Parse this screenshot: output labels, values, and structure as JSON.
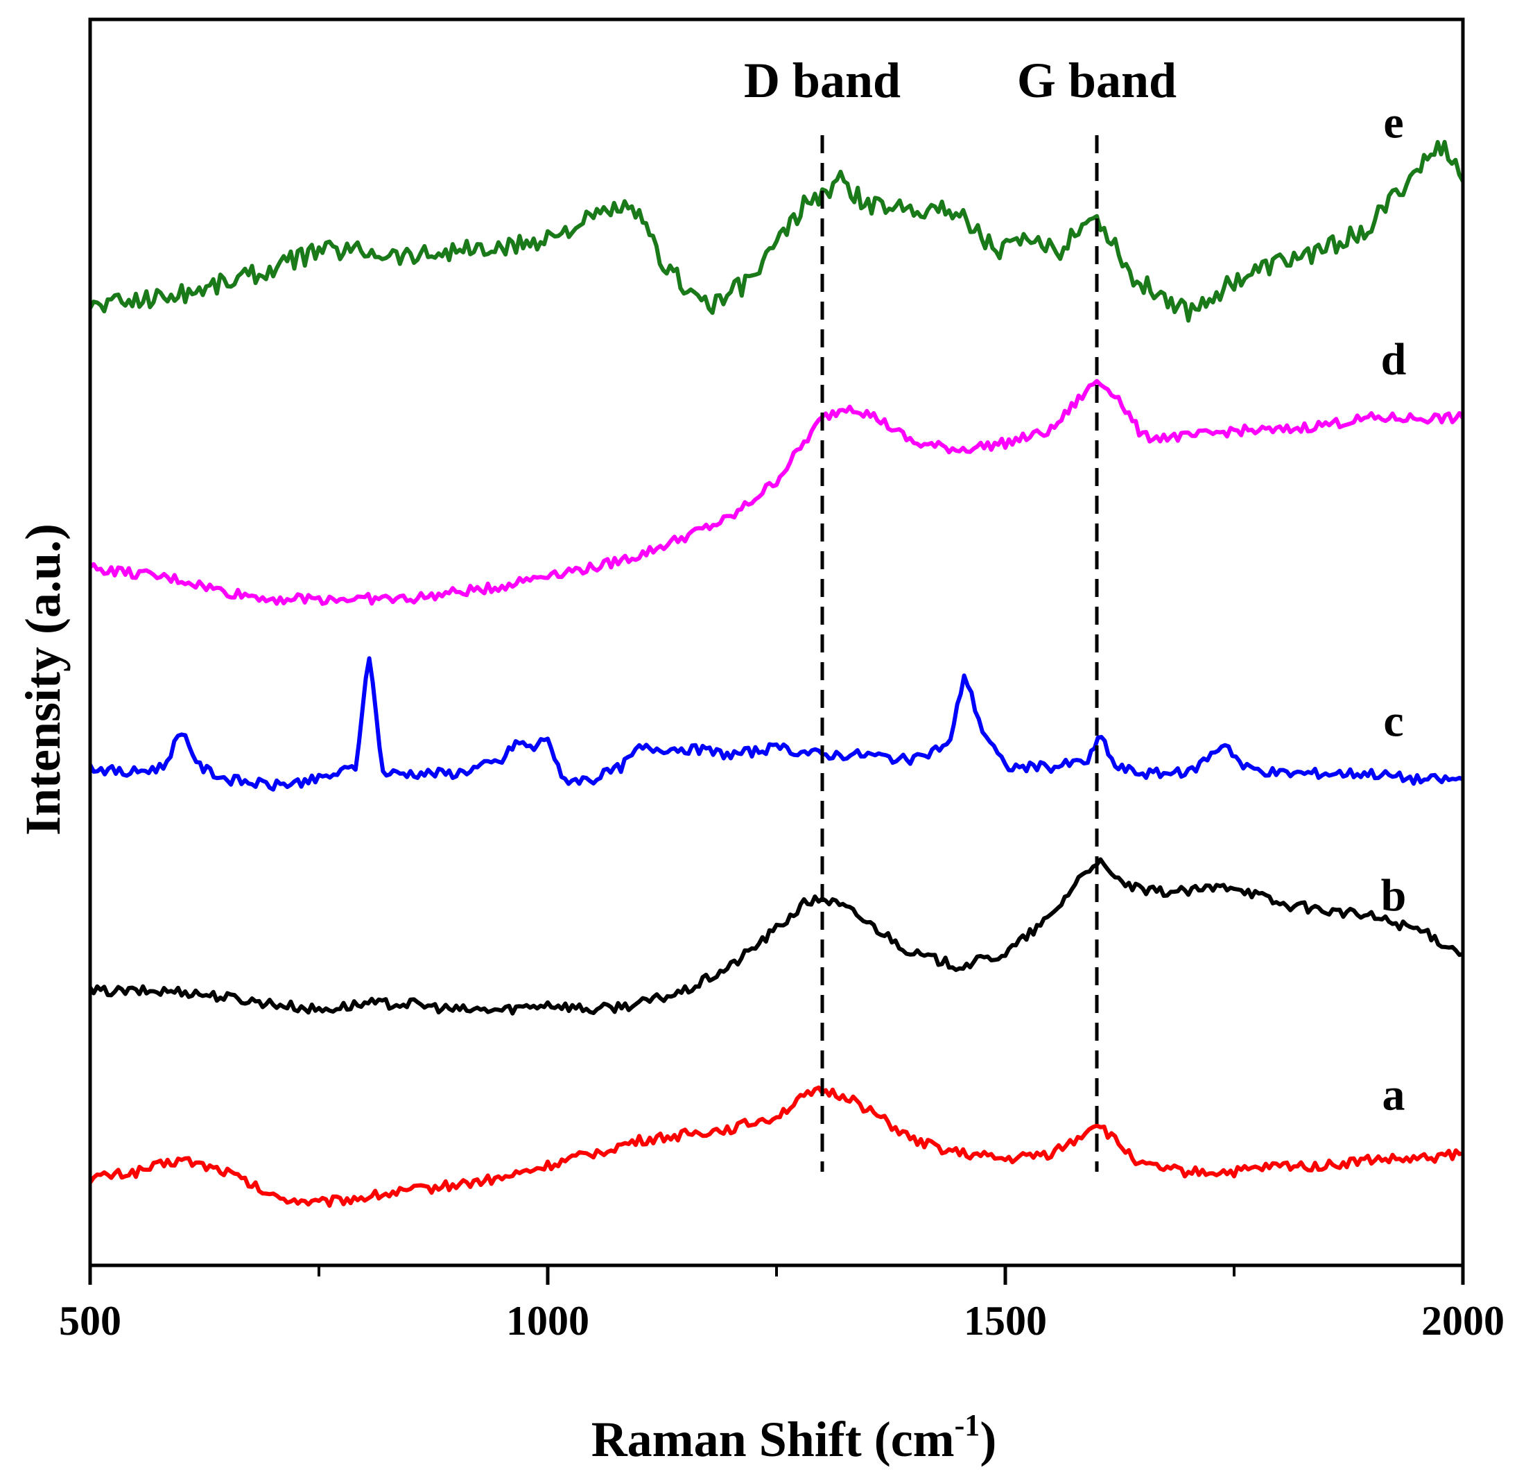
{
  "chart_data": {
    "type": "line",
    "title": "",
    "xlabel": "Raman Shift (cm",
    "xlabel_sup": "-1",
    "xlabel_close": ")",
    "ylabel": "Intensity (a.u.)",
    "xlim": [
      500,
      2000
    ],
    "ylim": [
      0,
      100
    ],
    "x_ticks": [
      500,
      1000,
      1500,
      2000
    ],
    "x_minor_ticks": [
      750,
      1250,
      1750
    ],
    "y_ticks_shown": false,
    "annotations": [
      {
        "text": "D band",
        "x": 1300
      },
      {
        "text": "G band",
        "x": 1600
      }
    ],
    "series": [
      {
        "name": "a",
        "color": "#ff0000",
        "points": [
          [
            500,
            7
          ],
          [
            550,
            7.5
          ],
          [
            600,
            8.5
          ],
          [
            650,
            7.5
          ],
          [
            700,
            5.5
          ],
          [
            750,
            5
          ],
          [
            800,
            5.5
          ],
          [
            850,
            6
          ],
          [
            900,
            6.5
          ],
          [
            950,
            7
          ],
          [
            1000,
            8
          ],
          [
            1050,
            9
          ],
          [
            1100,
            10
          ],
          [
            1150,
            10.5
          ],
          [
            1200,
            11
          ],
          [
            1250,
            12
          ],
          [
            1280,
            13.5
          ],
          [
            1300,
            14
          ],
          [
            1330,
            13.5
          ],
          [
            1360,
            12
          ],
          [
            1400,
            10
          ],
          [
            1450,
            9
          ],
          [
            1500,
            8.5
          ],
          [
            1550,
            9
          ],
          [
            1575,
            10
          ],
          [
            1600,
            11.5
          ],
          [
            1620,
            10
          ],
          [
            1650,
            8
          ],
          [
            1700,
            7.5
          ],
          [
            1750,
            7.5
          ],
          [
            1800,
            8
          ],
          [
            1850,
            8
          ],
          [
            1900,
            8.5
          ],
          [
            1950,
            8.5
          ],
          [
            2000,
            9
          ]
        ]
      },
      {
        "name": "b",
        "color": "#000000",
        "points": [
          [
            500,
            22
          ],
          [
            550,
            22
          ],
          [
            600,
            22
          ],
          [
            650,
            21.5
          ],
          [
            700,
            21
          ],
          [
            750,
            20.5
          ],
          [
            800,
            21
          ],
          [
            850,
            21
          ],
          [
            900,
            20.5
          ],
          [
            950,
            20.5
          ],
          [
            1000,
            21
          ],
          [
            1050,
            20.5
          ],
          [
            1100,
            21
          ],
          [
            1150,
            22
          ],
          [
            1200,
            24
          ],
          [
            1250,
            27
          ],
          [
            1280,
            29
          ],
          [
            1300,
            29.5
          ],
          [
            1330,
            28.5
          ],
          [
            1360,
            27
          ],
          [
            1400,
            25
          ],
          [
            1450,
            24
          ],
          [
            1500,
            25
          ],
          [
            1550,
            28
          ],
          [
            1580,
            31
          ],
          [
            1600,
            32.5
          ],
          [
            1620,
            31
          ],
          [
            1650,
            30
          ],
          [
            1700,
            30
          ],
          [
            1750,
            30.5
          ],
          [
            1800,
            29
          ],
          [
            1850,
            28.5
          ],
          [
            1900,
            28
          ],
          [
            1950,
            27
          ],
          [
            2000,
            25
          ]
        ]
      },
      {
        "name": "c",
        "color": "#0000ff",
        "points": [
          [
            500,
            40
          ],
          [
            540,
            39.5
          ],
          [
            580,
            40
          ],
          [
            600,
            43
          ],
          [
            620,
            40
          ],
          [
            650,
            39
          ],
          [
            700,
            38.5
          ],
          [
            750,
            39
          ],
          [
            790,
            40
          ],
          [
            805,
            49
          ],
          [
            820,
            39.5
          ],
          [
            850,
            39.5
          ],
          [
            900,
            39.5
          ],
          [
            950,
            40.5
          ],
          [
            965,
            42
          ],
          [
            985,
            41.5
          ],
          [
            1000,
            42.5
          ],
          [
            1015,
            39
          ],
          [
            1050,
            39
          ],
          [
            1080,
            40
          ],
          [
            1100,
            41.5
          ],
          [
            1150,
            41.5
          ],
          [
            1200,
            41
          ],
          [
            1250,
            41.5
          ],
          [
            1300,
            41
          ],
          [
            1350,
            41
          ],
          [
            1400,
            40.5
          ],
          [
            1440,
            42
          ],
          [
            1455,
            47.5
          ],
          [
            1475,
            43
          ],
          [
            1500,
            40
          ],
          [
            1550,
            40
          ],
          [
            1590,
            40.5
          ],
          [
            1605,
            42.5
          ],
          [
            1620,
            40
          ],
          [
            1650,
            39.5
          ],
          [
            1700,
            39.5
          ],
          [
            1725,
            41
          ],
          [
            1740,
            42
          ],
          [
            1760,
            40
          ],
          [
            1800,
            39.5
          ],
          [
            1850,
            39.5
          ],
          [
            1900,
            39.5
          ],
          [
            1950,
            39
          ],
          [
            2000,
            39
          ]
        ]
      },
      {
        "name": "d",
        "color": "#ff00ff",
        "points": [
          [
            500,
            56
          ],
          [
            550,
            55.5
          ],
          [
            600,
            55
          ],
          [
            650,
            54
          ],
          [
            700,
            53.5
          ],
          [
            750,
            53.5
          ],
          [
            800,
            53.5
          ],
          [
            850,
            53.5
          ],
          [
            900,
            54
          ],
          [
            950,
            54.5
          ],
          [
            1000,
            55.5
          ],
          [
            1050,
            56
          ],
          [
            1100,
            57
          ],
          [
            1150,
            58.5
          ],
          [
            1200,
            60
          ],
          [
            1250,
            63
          ],
          [
            1280,
            66
          ],
          [
            1300,
            68
          ],
          [
            1330,
            69
          ],
          [
            1360,
            68
          ],
          [
            1400,
            66
          ],
          [
            1450,
            65.5
          ],
          [
            1500,
            66
          ],
          [
            1550,
            67
          ],
          [
            1580,
            69.5
          ],
          [
            1600,
            71
          ],
          [
            1620,
            70
          ],
          [
            1650,
            66.5
          ],
          [
            1700,
            66.5
          ],
          [
            1750,
            67
          ],
          [
            1800,
            67
          ],
          [
            1850,
            67.5
          ],
          [
            1900,
            68
          ],
          [
            1950,
            68
          ],
          [
            2000,
            68
          ]
        ]
      },
      {
        "name": "e",
        "color": "#1a7a1a",
        "points": [
          [
            500,
            77
          ],
          [
            550,
            77.5
          ],
          [
            600,
            78
          ],
          [
            650,
            79
          ],
          [
            700,
            80
          ],
          [
            750,
            81.5
          ],
          [
            800,
            81.5
          ],
          [
            850,
            81
          ],
          [
            900,
            81.5
          ],
          [
            950,
            81.5
          ],
          [
            1000,
            82.5
          ],
          [
            1050,
            84
          ],
          [
            1080,
            85
          ],
          [
            1100,
            84
          ],
          [
            1130,
            80
          ],
          [
            1160,
            78
          ],
          [
            1180,
            77
          ],
          [
            1220,
            79
          ],
          [
            1250,
            82
          ],
          [
            1280,
            85
          ],
          [
            1300,
            86
          ],
          [
            1320,
            87
          ],
          [
            1350,
            85
          ],
          [
            1400,
            85
          ],
          [
            1450,
            84.5
          ],
          [
            1490,
            81.5
          ],
          [
            1520,
            82
          ],
          [
            1560,
            81.5
          ],
          [
            1580,
            83.5
          ],
          [
            1600,
            84
          ],
          [
            1620,
            82
          ],
          [
            1640,
            79
          ],
          [
            1670,
            78
          ],
          [
            1700,
            76.5
          ],
          [
            1750,
            79
          ],
          [
            1800,
            80.5
          ],
          [
            1850,
            81.5
          ],
          [
            1900,
            83.5
          ],
          [
            1950,
            88
          ],
          [
            1980,
            90
          ],
          [
            2000,
            87
          ]
        ]
      }
    ]
  }
}
